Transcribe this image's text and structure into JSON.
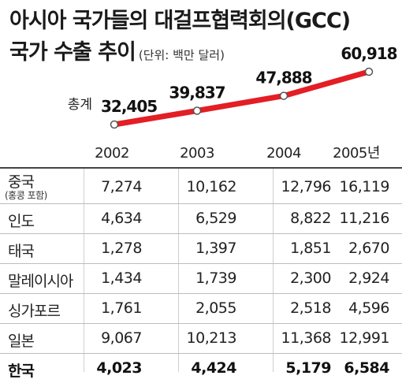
{
  "title_line1": "아시아 국가들의 대걸프협력회의(GCC)",
  "title_line2": "국가 수출 추이",
  "unit_label": "(단위: 백만 달러)",
  "chart_data": {
    "type": "line",
    "x": [
      "2002",
      "2003",
      "2004",
      "2005년"
    ],
    "series": [
      {
        "name": "총계",
        "values": [
          32405,
          39837,
          47888,
          60918
        ],
        "labels": [
          "32,405",
          "39,837",
          "47,888",
          "60,918"
        ],
        "color": "#e31e24"
      }
    ],
    "grid": false,
    "legend": "none"
  },
  "table": {
    "rows": [
      {
        "label": "중국",
        "sublabel": "(홍콩 포함)",
        "values": [
          "7,274",
          "10,162",
          "12,796",
          "16,119"
        ]
      },
      {
        "label": "인도",
        "values": [
          "4,634",
          "6,529",
          "8,822",
          "11,216"
        ]
      },
      {
        "label": "태국",
        "values": [
          "1,278",
          "1,397",
          "1,851",
          "2,670"
        ]
      },
      {
        "label": "말레이시아",
        "values": [
          "1,434",
          "1,739",
          "2,300",
          "2,924"
        ]
      },
      {
        "label": "싱가포르",
        "values": [
          "1,761",
          "2,055",
          "2,518",
          "4,596"
        ]
      },
      {
        "label": "일본",
        "values": [
          "9,067",
          "10,213",
          "11,368",
          "12,991"
        ]
      },
      {
        "label": "한국",
        "values": [
          "4,023",
          "4,424",
          "5,179",
          "6,584"
        ],
        "bold": true
      }
    ]
  }
}
